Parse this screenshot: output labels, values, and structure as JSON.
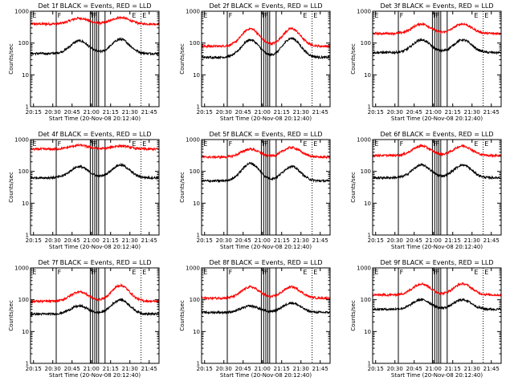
{
  "figure": {
    "panel_titles": [
      "Det 1f BLACK = Events, RED = LLD",
      "Det 2f BLACK = Events, RED = LLD",
      "Det 3f BLACK = Events, RED = LLD",
      "Det 4f BLACK = Events, RED = LLD",
      "Det 5f BLACK = Events, RED = LLD",
      "Det 6f BLACK = Events, RED = LLD",
      "Det 7f BLACK = Events, RED = LLD",
      "Det 8f BLACK = Events, RED = LLD",
      "Det 9f BLACK = Events, RED = LLD"
    ],
    "xlabel": "Start Time (20-Nov-08 20:12:40)",
    "ylabel": "Counts/sec",
    "x_tick_labels": [
      "20:15",
      "20:30",
      "20:45",
      "21:00",
      "21:15",
      "21:30",
      "21:45"
    ],
    "y_tick_labels": [
      "1",
      "10",
      "100",
      "1000"
    ],
    "flag_labels": [
      "E",
      "F",
      "F",
      "F",
      "E",
      "E"
    ],
    "colors": {
      "events": "#000000",
      "lld": "#ff0000",
      "background": "#ffffff"
    }
  },
  "chart_data": {
    "type": "line",
    "x_unit": "minutes after 20:12:40",
    "xlim": [
      0,
      100
    ],
    "y_scale": "log",
    "ylim": [
      1,
      1000
    ],
    "x_ticks_min": [
      2.33,
      17.33,
      32.33,
      47.33,
      62.33,
      77.33,
      92.33
    ],
    "vertical_markers": {
      "solid_min": [
        20,
        46.5,
        48.3,
        50,
        51.5,
        53,
        58
      ],
      "dotted_min": [
        86
      ],
      "flag_positions_min": [
        1.5,
        21,
        47,
        49,
        79,
        87
      ]
    },
    "series_model": "log10 count rate: base + trend*(t/100) + bump1*gauss(t,38,7) + bump2*gauss(t,70,7)",
    "panels": [
      {
        "events": {
          "base": 1.67,
          "trend": 0,
          "bump1": 0.4,
          "bump2": 0.45
        },
        "lld": {
          "base": 2.6,
          "trend": 0,
          "bump1": 0.18,
          "bump2": 0.2
        }
      },
      {
        "events": {
          "base": 1.55,
          "trend": 0,
          "bump1": 0.55,
          "bump2": 0.6
        },
        "lld": {
          "base": 1.9,
          "trend": 0,
          "bump1": 0.55,
          "bump2": 0.55
        }
      },
      {
        "events": {
          "base": 1.7,
          "trend": 0,
          "bump1": 0.4,
          "bump2": 0.4
        },
        "lld": {
          "base": 2.3,
          "trend": 0,
          "bump1": 0.3,
          "bump2": 0.3
        }
      },
      {
        "events": {
          "base": 1.8,
          "trend": 0,
          "bump1": 0.35,
          "bump2": 0.4
        },
        "lld": {
          "base": 2.7,
          "trend": 0,
          "bump1": 0.12,
          "bump2": 0.1
        }
      },
      {
        "events": {
          "base": 1.7,
          "trend": 0,
          "bump1": 0.55,
          "bump2": 0.45
        },
        "lld": {
          "base": 2.45,
          "trend": 0,
          "bump1": 0.25,
          "bump2": 0.3
        }
      },
      {
        "events": {
          "base": 1.8,
          "trend": 0,
          "bump1": 0.4,
          "bump2": 0.4
        },
        "lld": {
          "base": 2.5,
          "trend": 0,
          "bump1": 0.3,
          "bump2": 0.3
        }
      },
      {
        "events": {
          "base": 1.55,
          "trend": 0,
          "bump1": 0.25,
          "bump2": 0.45
        },
        "lld": {
          "base": 1.95,
          "trend": 0,
          "bump1": 0.3,
          "bump2": 0.5
        }
      },
      {
        "events": {
          "base": 1.6,
          "trend": 0,
          "bump1": 0.2,
          "bump2": 0.3
        },
        "lld": {
          "base": 2.05,
          "trend": 0,
          "bump1": 0.35,
          "bump2": 0.35
        }
      },
      {
        "events": {
          "base": 1.7,
          "trend": 0,
          "bump1": 0.3,
          "bump2": 0.3
        },
        "lld": {
          "base": 2.15,
          "trend": 0,
          "bump1": 0.35,
          "bump2": 0.35
        }
      }
    ]
  }
}
